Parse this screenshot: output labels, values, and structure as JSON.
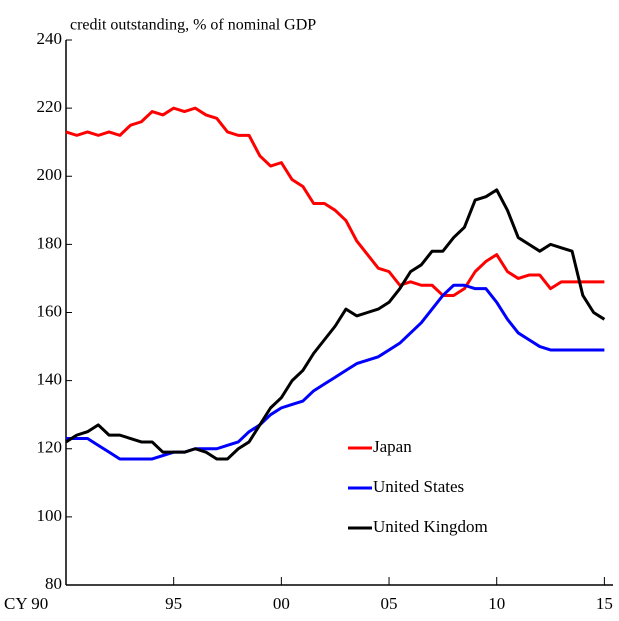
{
  "chart_data": {
    "type": "line",
    "title": "credit outstanding, % of nominal GDP",
    "x": [
      1990,
      1990.5,
      1991,
      1991.5,
      1992,
      1992.5,
      1993,
      1993.5,
      1994,
      1994.5,
      1995,
      1995.5,
      1996,
      1996.5,
      1997,
      1997.5,
      1998,
      1998.5,
      1999,
      1999.5,
      2000,
      2000.5,
      2001,
      2001.5,
      2002,
      2002.5,
      2003,
      2003.5,
      2004,
      2004.5,
      2005,
      2005.5,
      2006,
      2006.5,
      2007,
      2007.5,
      2008,
      2008.5,
      2009,
      2009.5,
      2010,
      2010.5,
      2011,
      2011.5,
      2012,
      2012.5,
      2013,
      2013.5,
      2014,
      2014.5,
      2015
    ],
    "series": [
      {
        "name": "Japan",
        "color": "#ff0000",
        "values": [
          213,
          212,
          213,
          212,
          213,
          212,
          215,
          216,
          219,
          218,
          220,
          219,
          220,
          218,
          217,
          213,
          212,
          212,
          206,
          203,
          204,
          199,
          197,
          192,
          192,
          190,
          187,
          181,
          177,
          173,
          172,
          168,
          169,
          168,
          168,
          165,
          165,
          167,
          172,
          175,
          177,
          172,
          170,
          171,
          171,
          167,
          169,
          169,
          169,
          169,
          169
        ]
      },
      {
        "name": "United States",
        "color": "#0000ff",
        "values": [
          123,
          123,
          123,
          121,
          119,
          117,
          117,
          117,
          117,
          118,
          119,
          119,
          120,
          120,
          120,
          121,
          122,
          125,
          127,
          130,
          132,
          133,
          134,
          137,
          139,
          141,
          143,
          145,
          146,
          147,
          149,
          151,
          154,
          157,
          161,
          165,
          168,
          168,
          167,
          167,
          163,
          158,
          154,
          152,
          150,
          149,
          149,
          149,
          149,
          149,
          149
        ]
      },
      {
        "name": "United Kingdom",
        "color": "#000000",
        "values": [
          122,
          124,
          125,
          127,
          124,
          124,
          123,
          122,
          122,
          119,
          119,
          119,
          120,
          119,
          117,
          117,
          120,
          122,
          127,
          132,
          135,
          140,
          143,
          148,
          152,
          156,
          161,
          159,
          160,
          161,
          163,
          167,
          172,
          174,
          178,
          178,
          182,
          185,
          193,
          194,
          196,
          190,
          182,
          180,
          178,
          180,
          179,
          178,
          165,
          160,
          158
        ]
      }
    ],
    "xlim": [
      1990,
      2015.4
    ],
    "xticks": [
      {
        "value": 1990,
        "label": "CY 90"
      },
      {
        "value": 1995,
        "label": "95"
      },
      {
        "value": 2000,
        "label": "00"
      },
      {
        "value": 2005,
        "label": "05"
      },
      {
        "value": 2010,
        "label": "10"
      },
      {
        "value": 2015,
        "label": "15"
      }
    ],
    "ylim": [
      80,
      240
    ],
    "yticks": [
      80,
      100,
      120,
      140,
      160,
      180,
      200,
      220,
      240
    ]
  }
}
